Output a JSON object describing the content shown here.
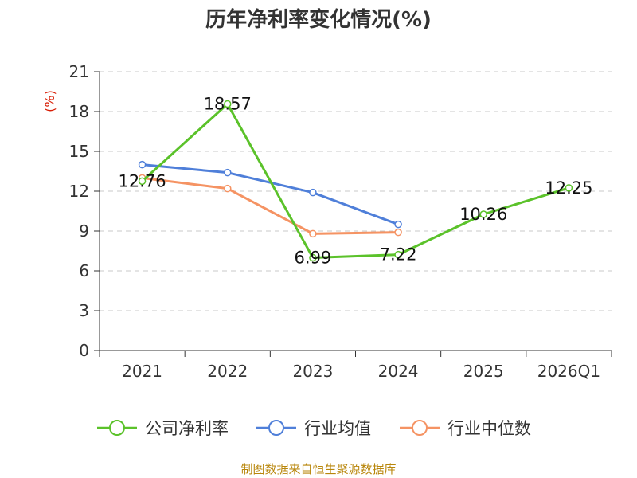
{
  "chart_data": {
    "type": "line",
    "title": "历年净利率变化情况(%)",
    "ylabel": "(%)",
    "xlabel": "",
    "categories": [
      "2021",
      "2022",
      "2023",
      "2024",
      "2025",
      "2026Q1"
    ],
    "ylim": [
      0,
      21
    ],
    "yticks": [
      0,
      3,
      6,
      9,
      12,
      15,
      18,
      21
    ],
    "grid": true,
    "legend_position": "bottom",
    "series": [
      {
        "name": "公司净利率",
        "color": "#5bc22a",
        "values": [
          12.76,
          18.57,
          6.99,
          7.22,
          10.26,
          12.25
        ],
        "labels": [
          "12.76",
          "18.57",
          "6.99",
          "7.22",
          "10.26",
          "12.25"
        ]
      },
      {
        "name": "行业均值",
        "color": "#4f7fd9",
        "values": [
          14.0,
          13.4,
          11.9,
          9.5,
          null,
          null
        ]
      },
      {
        "name": "行业中位数",
        "color": "#f59363",
        "values": [
          13.0,
          12.2,
          8.8,
          8.9,
          null,
          null
        ]
      }
    ]
  },
  "footer": "制图数据来自恒生聚源数据库"
}
